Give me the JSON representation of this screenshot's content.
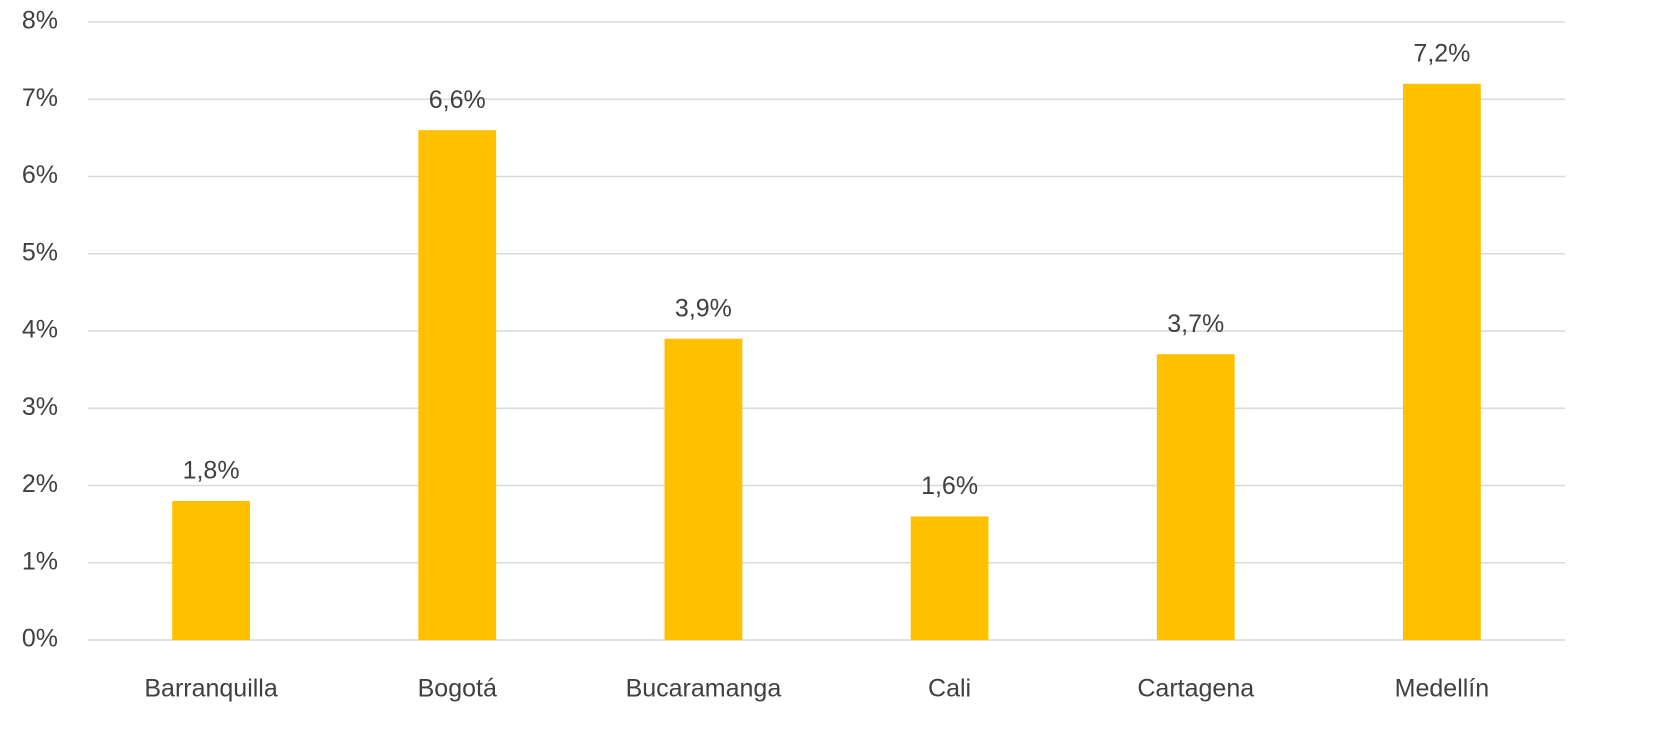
{
  "chart_data": {
    "type": "bar",
    "categories": [
      "Barranquilla",
      "Bogotá",
      "Bucaramanga",
      "Cali",
      "Cartagena",
      "Medellín"
    ],
    "values": [
      1.8,
      6.6,
      3.9,
      1.6,
      3.7,
      7.2
    ],
    "value_labels": [
      "1,8%",
      "6,6%",
      "3,9%",
      "1,6%",
      "3,7%",
      "7,2%"
    ],
    "color": "#ffc000",
    "ylim": [
      0,
      8
    ],
    "yticks": [
      {
        "value": 0,
        "label": "0%"
      },
      {
        "value": 1,
        "label": "1%"
      },
      {
        "value": 2,
        "label": "2%"
      },
      {
        "value": 3,
        "label": "3%"
      },
      {
        "value": 4,
        "label": "4%"
      },
      {
        "value": 5,
        "label": "5%"
      },
      {
        "value": 6,
        "label": "6%"
      },
      {
        "value": 7,
        "label": "7%"
      },
      {
        "value": 8,
        "label": "8%"
      }
    ],
    "grid": true
  }
}
